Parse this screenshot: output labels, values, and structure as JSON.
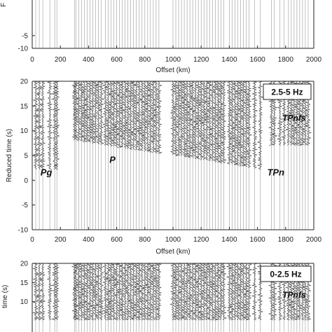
{
  "chart_data": [
    {
      "type": "line",
      "panel": "top (cropped)",
      "xlabel": "Offset (km)",
      "ylabel": "",
      "xlim": [
        0,
        2000
      ],
      "ylim_visible": [
        -10,
        0
      ],
      "x_ticks": [
        0,
        200,
        400,
        600,
        800,
        1000,
        1200,
        1400,
        1600,
        1800,
        2000
      ],
      "y_ticks": [
        -5,
        -10
      ],
      "frequency_band": "",
      "trace_offsets_km": [
        25,
        50,
        75,
        125,
        160,
        175,
        300,
        310,
        330,
        350,
        370,
        390,
        410,
        430,
        450,
        470,
        490,
        520,
        540,
        560,
        580,
        600,
        620,
        640,
        660,
        680,
        700,
        720,
        740,
        760,
        780,
        800,
        820,
        840,
        860,
        880,
        900,
        1000,
        1020,
        1040,
        1060,
        1080,
        1100,
        1120,
        1140,
        1160,
        1180,
        1200,
        1220,
        1240,
        1260,
        1280,
        1300,
        1320,
        1340,
        1360,
        1400,
        1420,
        1440,
        1460,
        1480,
        1500,
        1520,
        1540,
        1580,
        1620,
        1700,
        1720,
        1760,
        1790,
        1820,
        1840,
        1860,
        1880,
        1900,
        1920,
        1940,
        1960
      ],
      "annotations": []
    },
    {
      "type": "line",
      "panel": "middle",
      "xlabel": "Offset (km)",
      "ylabel": "Reduced time (s)",
      "xlim": [
        0,
        2000
      ],
      "ylim": [
        -10,
        20
      ],
      "x_ticks": [
        0,
        200,
        400,
        600,
        800,
        1000,
        1200,
        1400,
        1600,
        1800,
        2000
      ],
      "y_ticks": [
        20,
        15,
        10,
        5,
        0,
        -5,
        -10
      ],
      "frequency_band": "2.5-5 Hz",
      "trace_offsets_km": [
        25,
        50,
        75,
        125,
        160,
        175,
        300,
        310,
        330,
        350,
        370,
        390,
        410,
        430,
        450,
        470,
        490,
        520,
        540,
        560,
        580,
        600,
        620,
        640,
        660,
        680,
        700,
        720,
        740,
        760,
        780,
        800,
        820,
        840,
        860,
        880,
        900,
        1000,
        1020,
        1040,
        1060,
        1080,
        1100,
        1120,
        1140,
        1160,
        1180,
        1200,
        1220,
        1240,
        1260,
        1280,
        1300,
        1320,
        1340,
        1360,
        1400,
        1420,
        1440,
        1460,
        1480,
        1500,
        1520,
        1540,
        1580,
        1620,
        1700,
        1720,
        1760,
        1790,
        1820,
        1840,
        1860,
        1880,
        1900,
        1920,
        1940,
        1960
      ],
      "annotations": [
        {
          "text": "Pg",
          "x": 100,
          "y": 1
        },
        {
          "text": "P",
          "x": 570,
          "y": 3.5
        },
        {
          "text": "TPn",
          "x": 1730,
          "y": 1
        },
        {
          "text": "TPnfs",
          "x": 1860,
          "y": 12
        }
      ]
    },
    {
      "type": "line",
      "panel": "bottom (cropped)",
      "xlabel": "",
      "ylabel": "Reduced time (s)",
      "xlim": [
        0,
        2000
      ],
      "ylim_visible": [
        5,
        20
      ],
      "x_ticks": [],
      "y_ticks": [
        20,
        15,
        10
      ],
      "frequency_band": "0-2.5 Hz",
      "trace_offsets_km": [
        25,
        50,
        75,
        125,
        160,
        175,
        300,
        310,
        330,
        350,
        370,
        390,
        410,
        430,
        450,
        470,
        490,
        520,
        540,
        560,
        580,
        600,
        620,
        640,
        660,
        680,
        700,
        720,
        740,
        760,
        780,
        800,
        820,
        840,
        860,
        880,
        900,
        1000,
        1020,
        1040,
        1060,
        1080,
        1100,
        1120,
        1140,
        1160,
        1180,
        1200,
        1220,
        1240,
        1260,
        1280,
        1300,
        1320,
        1340,
        1360,
        1400,
        1420,
        1440,
        1460,
        1480,
        1500,
        1520,
        1540,
        1580,
        1620,
        1700,
        1720,
        1760,
        1790,
        1820,
        1840,
        1860,
        1880,
        1900,
        1920,
        1940,
        1960
      ],
      "annotations": [
        {
          "text": "TPnfs",
          "x": 1860,
          "y": 11
        }
      ]
    }
  ],
  "labels": {
    "top_partial_ylabel": "F",
    "bottom_partial_ylabel": "time (s)"
  }
}
